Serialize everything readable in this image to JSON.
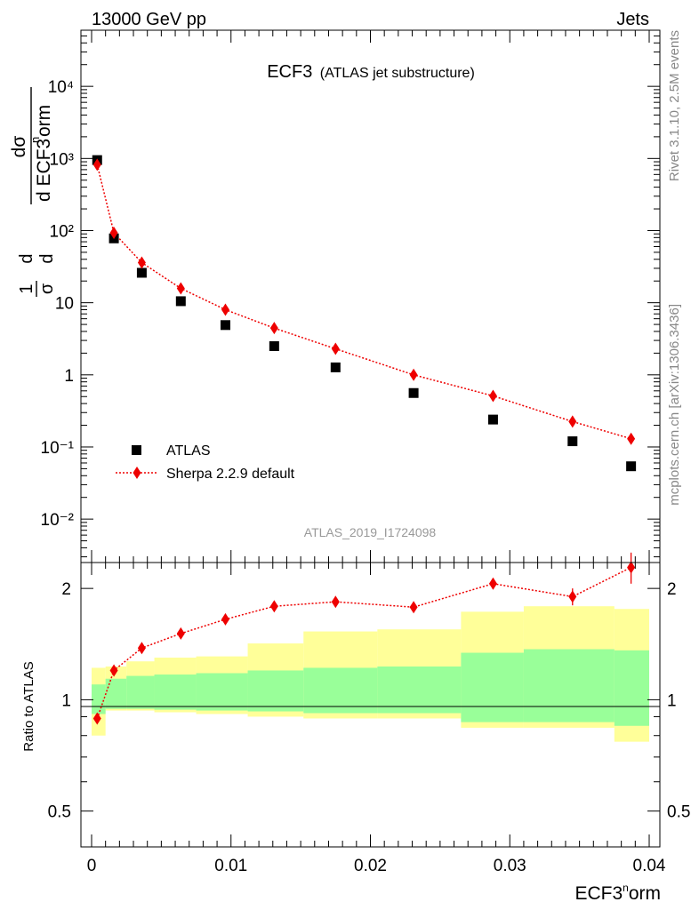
{
  "header": {
    "left": "13000 GeV pp",
    "right": "Jets"
  },
  "side": {
    "version": "Rivet 3.1.10,  2.5M events",
    "source": "mcplots.cern.ch [arXiv:1306.3436]"
  },
  "chart_data": {
    "type": "scatter",
    "title": "ECF3",
    "subtitle": "(ATLAS jet substructure)",
    "analysis_id": "ATLAS_2019_I1724098",
    "ylabel_top": "1/σ dσ/d ECF3norm",
    "ylabel_ratio": "Ratio to ATLAS",
    "xlabel": "ECF3norm",
    "xlim": [
      0,
      0.04
    ],
    "ylim_top": [
      0.0025,
      60000
    ],
    "yscale_top": "log",
    "ylim_ratio": [
      0.4,
      2.35
    ],
    "yscale_ratio": "log",
    "x_ticks": [
      "0",
      "0.01",
      "0.02",
      "0.03",
      "0.04"
    ],
    "y_ticks_top": [
      "10⁻²",
      "10⁻¹",
      "1",
      "10",
      "10²",
      "10³",
      "10⁴"
    ],
    "y_ticks_ratio": [
      "0.5",
      "1",
      "2"
    ],
    "legend": {
      "position": "bottom-left",
      "entries": [
        "ATLAS",
        "Sherpa 2.2.9 default"
      ]
    },
    "bins": [
      {
        "lo": 0.0,
        "hi": 0.001
      },
      {
        "lo": 0.001,
        "hi": 0.0025
      },
      {
        "lo": 0.0025,
        "hi": 0.0045
      },
      {
        "lo": 0.0045,
        "hi": 0.0075
      },
      {
        "lo": 0.0075,
        "hi": 0.0112
      },
      {
        "lo": 0.0112,
        "hi": 0.0152
      },
      {
        "lo": 0.0152,
        "hi": 0.0205
      },
      {
        "lo": 0.0205,
        "hi": 0.0265
      },
      {
        "lo": 0.0265,
        "hi": 0.031
      },
      {
        "lo": 0.031,
        "hi": 0.0375
      },
      {
        "lo": 0.0375,
        "hi": 0.04
      }
    ],
    "series": [
      {
        "name": "ATLAS",
        "x": [
          0.0004,
          0.0016,
          0.0036,
          0.0064,
          0.0096,
          0.0131,
          0.0175,
          0.0231,
          0.0288,
          0.0345,
          0.0387
        ],
        "y": [
          950,
          78,
          26,
          10.5,
          4.9,
          2.5,
          1.27,
          0.56,
          0.24,
          0.12,
          0.054
        ]
      },
      {
        "name": "Sherpa 2.2.9 default",
        "x": [
          0.0004,
          0.0016,
          0.0036,
          0.0064,
          0.0096,
          0.0131,
          0.0175,
          0.0231,
          0.0288,
          0.0345,
          0.0387
        ],
        "y": [
          820,
          93,
          36,
          15.8,
          8.0,
          4.45,
          2.3,
          1.0,
          0.51,
          0.225,
          0.13
        ],
        "ratio": [
          0.89,
          1.2,
          1.38,
          1.51,
          1.65,
          1.79,
          1.84,
          1.78,
          2.06,
          1.9,
          2.28
        ],
        "ratio_err": [
          0.01,
          0.01,
          0.01,
          0.02,
          0.02,
          0.02,
          0.02,
          0.04,
          0.07,
          0.1,
          0.22
        ]
      }
    ],
    "bands": {
      "inner_color": "#99ff99",
      "outer_color": "#ffff99",
      "inner_lo": [
        0.915,
        0.945,
        0.945,
        0.94,
        0.935,
        0.93,
        0.92,
        0.92,
        0.87,
        0.87,
        0.85
      ],
      "inner_hi": [
        1.1,
        1.14,
        1.16,
        1.17,
        1.18,
        1.2,
        1.22,
        1.23,
        1.34,
        1.37,
        1.36
      ],
      "outer_lo": [
        0.8,
        0.935,
        0.935,
        0.925,
        0.915,
        0.9,
        0.89,
        0.89,
        0.84,
        0.84,
        0.77
      ],
      "outer_hi": [
        1.22,
        1.23,
        1.27,
        1.3,
        1.31,
        1.42,
        1.53,
        1.55,
        1.73,
        1.79,
        1.76
      ]
    },
    "colors": {
      "data": "#000000",
      "mc": "#ee0000",
      "ref_line": "#000000"
    }
  }
}
